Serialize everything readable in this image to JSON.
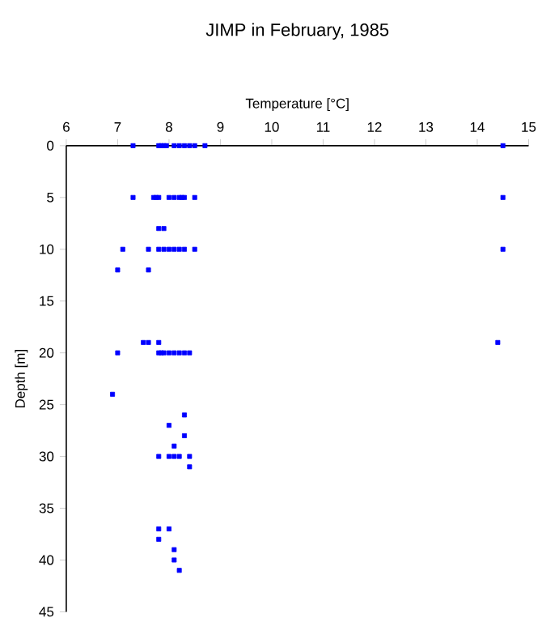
{
  "chart_data": {
    "type": "scatter",
    "title": "JIMP in February, 1985",
    "xlabel": "Temperature [°C]",
    "ylabel": "Depth [m]",
    "marker": "square",
    "xlim": [
      6,
      15
    ],
    "xticks": [
      6,
      7,
      8,
      9,
      10,
      11,
      12,
      13,
      14,
      15
    ],
    "ylim": [
      45,
      0
    ],
    "yticks": [
      0,
      5,
      10,
      15,
      20,
      25,
      30,
      35,
      40,
      45
    ],
    "series": [
      {
        "color": "#0000ff",
        "x": [
          7.3,
          7.8,
          7.85,
          7.9,
          7.95,
          8.1,
          8.2,
          8.3,
          8.4,
          8.5,
          8.7,
          14.5,
          7.3,
          7.7,
          7.75,
          7.8,
          8.0,
          8.1,
          8.2,
          8.25,
          8.3,
          8.5,
          14.5,
          7.8,
          7.9,
          7.1,
          7.6,
          7.8,
          7.9,
          8.0,
          8.1,
          8.2,
          8.3,
          8.5,
          14.5,
          7.0,
          7.6,
          7.5,
          7.6,
          7.8,
          14.4,
          7.0,
          7.8,
          7.85,
          7.9,
          8.0,
          8.1,
          8.2,
          8.3,
          8.4,
          6.9,
          8.3,
          8.0,
          8.3,
          8.1,
          7.8,
          8.0,
          8.1,
          8.2,
          8.4,
          8.4,
          7.8,
          8.0,
          7.8,
          8.1,
          8.1,
          8.2
        ],
        "values": [
          0,
          0,
          0,
          0,
          0,
          0,
          0,
          0,
          0,
          0,
          0,
          0,
          5,
          5,
          5,
          5,
          5,
          5,
          5,
          5,
          5,
          5,
          5,
          8,
          8,
          10,
          10,
          10,
          10,
          10,
          10,
          10,
          10,
          10,
          10,
          12,
          12,
          19,
          19,
          19,
          19,
          20,
          20,
          20,
          20,
          20,
          20,
          20,
          20,
          20,
          24,
          26,
          27,
          28,
          29,
          30,
          30,
          30,
          30,
          30,
          31,
          37,
          37,
          38,
          39,
          40,
          41
        ]
      }
    ]
  }
}
